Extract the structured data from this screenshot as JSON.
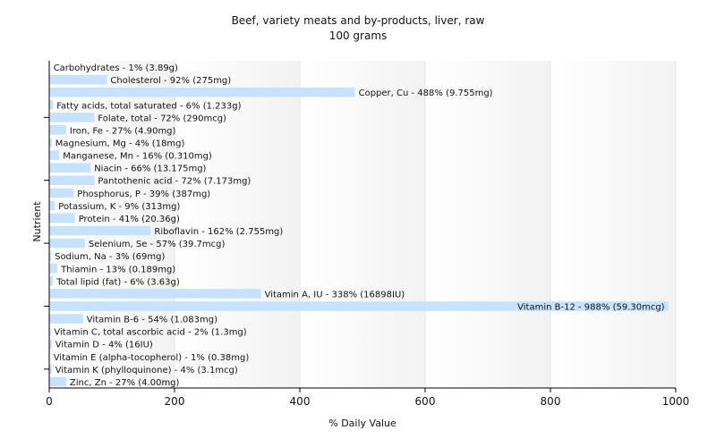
{
  "chart_data": {
    "type": "bar",
    "orientation": "horizontal",
    "title": "Beef, variety meats and by-products, liver, raw",
    "subtitle": "100 grams",
    "xlabel": "% Daily Value",
    "ylabel": "Nutrient",
    "xlim": [
      0,
      1000
    ],
    "xticks": [
      0,
      200,
      400,
      600,
      800,
      1000
    ],
    "grid": true,
    "bar_color": "#c6e2ff",
    "categories": [
      "Carbohydrates",
      "Cholesterol",
      "Copper, Cu",
      "Fatty acids, total saturated",
      "Folate, total",
      "Iron, Fe",
      "Magnesium, Mg",
      "Manganese, Mn",
      "Niacin",
      "Pantothenic acid",
      "Phosphorus, P",
      "Potassium, K",
      "Protein",
      "Riboflavin",
      "Selenium, Se",
      "Sodium, Na",
      "Thiamin",
      "Total lipid (fat)",
      "Vitamin A, IU",
      "Vitamin B-12",
      "Vitamin B-6",
      "Vitamin C, total ascorbic acid",
      "Vitamin D",
      "Vitamin E (alpha-tocopherol)",
      "Vitamin K (phylloquinone)",
      "Zinc, Zn"
    ],
    "values": [
      1,
      92,
      488,
      6,
      72,
      27,
      4,
      16,
      66,
      72,
      39,
      9,
      41,
      162,
      57,
      3,
      13,
      6,
      338,
      988,
      54,
      2,
      4,
      1,
      4,
      27
    ],
    "labels": [
      "Carbohydrates - 1% (3.89g)",
      "Cholesterol - 92% (275mg)",
      "Copper, Cu - 488% (9.755mg)",
      "Fatty acids, total saturated - 6% (1.233g)",
      "Folate, total - 72% (290mcg)",
      "Iron, Fe - 27% (4.90mg)",
      "Magnesium, Mg - 4% (18mg)",
      "Manganese, Mn - 16% (0.310mg)",
      "Niacin - 66% (13.175mg)",
      "Pantothenic acid - 72% (7.173mg)",
      "Phosphorus, P - 39% (387mg)",
      "Potassium, K - 9% (313mg)",
      "Protein - 41% (20.36g)",
      "Riboflavin - 162% (2.755mg)",
      "Selenium, Se - 57% (39.7mcg)",
      "Sodium, Na - 3% (69mg)",
      "Thiamin - 13% (0.189mg)",
      "Total lipid (fat) - 6% (3.63g)",
      "Vitamin A, IU - 338% (16898IU)",
      "Vitamin B-12 - 988% (59.30mcg)",
      "Vitamin B-6 - 54% (1.083mg)",
      "Vitamin C, total ascorbic acid - 2% (1.3mg)",
      "Vitamin D - 4% (16IU)",
      "Vitamin E (alpha-tocopherol) - 1% (0.38mg)",
      "Vitamin K (phylloquinone) - 4% (3.1mcg)",
      "Zinc, Zn - 27% (4.00mg)"
    ]
  }
}
